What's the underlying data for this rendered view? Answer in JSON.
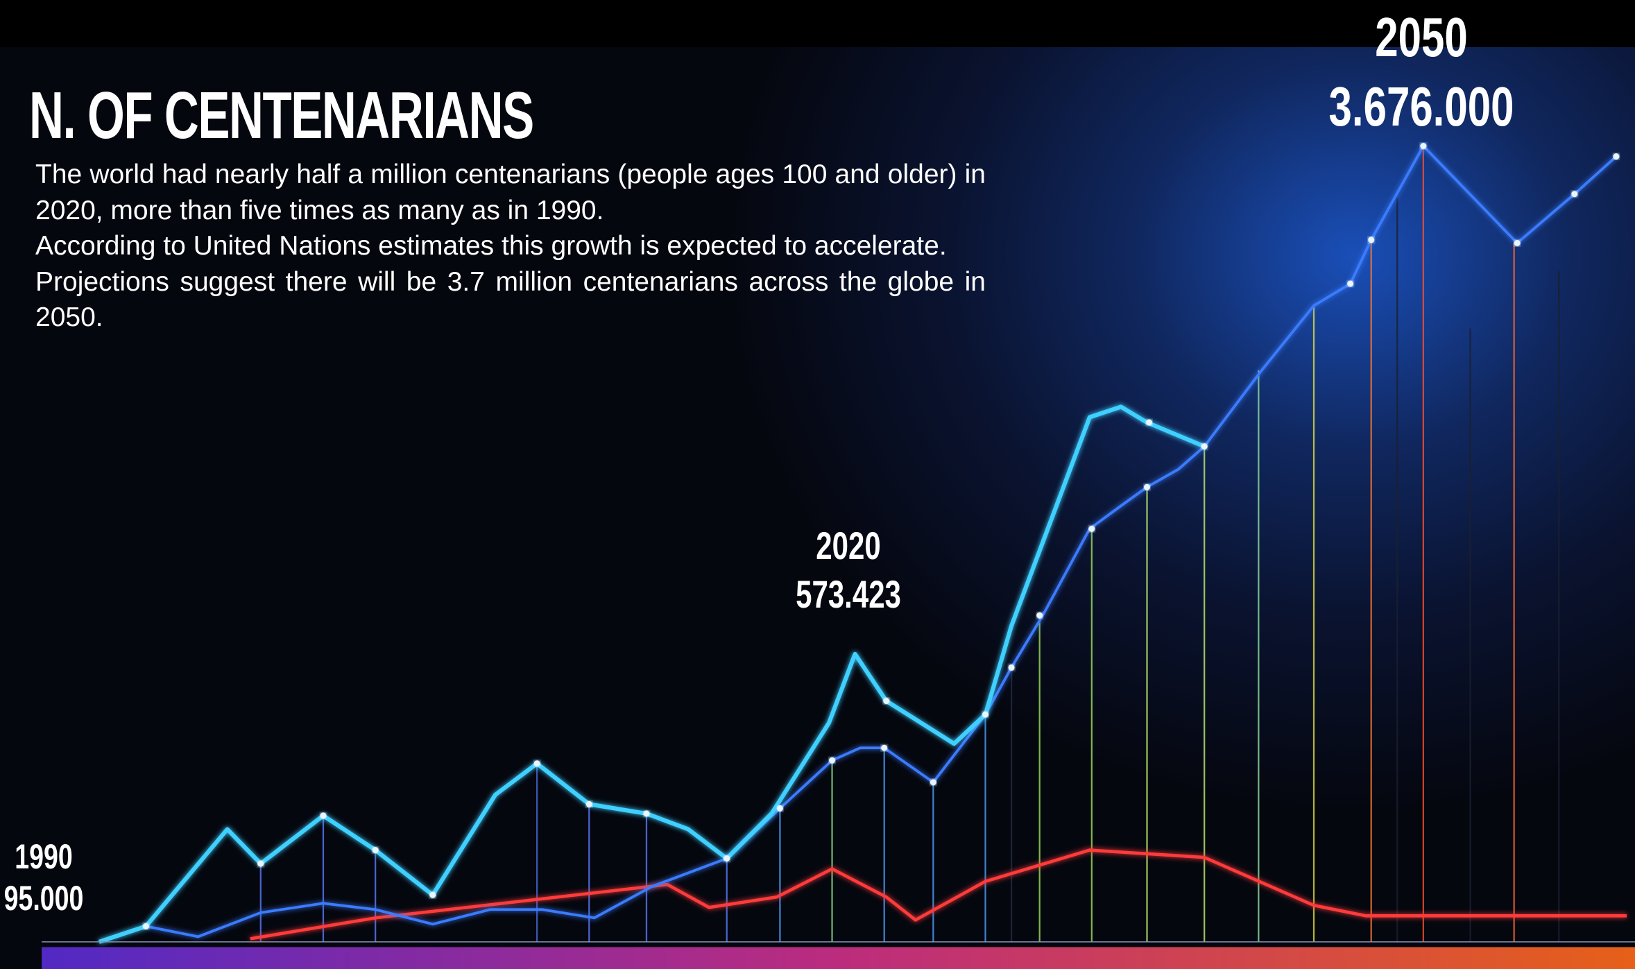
{
  "title": "N. OF CENTENARIANS",
  "paragraphs": [
    "The world had nearly half a million centenarians (people ages 100 and older) in 2020, more than five times as many as in 1990.",
    "According to United Nations estimates this growth is expected to accelerate.",
    "Projections suggest there will be 3.7 million centenarians across the globe in 2050."
  ],
  "annotations": [
    {
      "year": "1990",
      "value": "95.000"
    },
    {
      "year": "2020",
      "value": "573.423"
    },
    {
      "year": "2050",
      "value": "3.676.000"
    }
  ]
}
